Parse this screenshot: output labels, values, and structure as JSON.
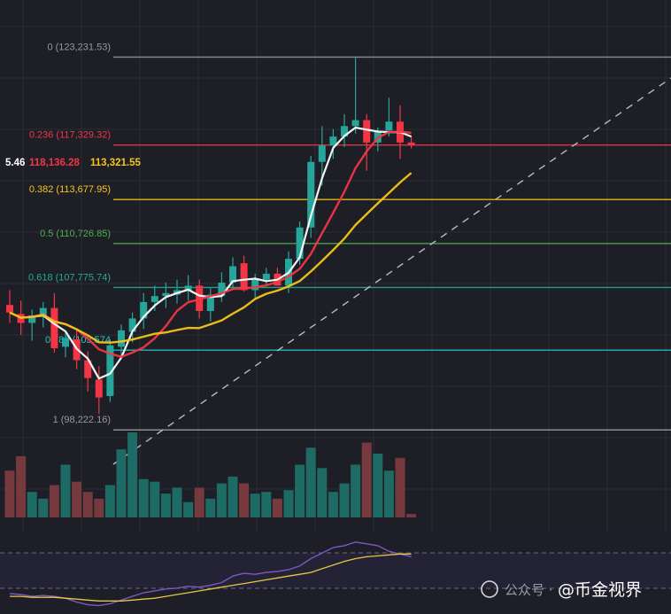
{
  "chart_data": {
    "type": "candlestick",
    "title": "",
    "y_range": [
      95800,
      124800
    ],
    "fib_levels": [
      {
        "ratio_label": "0",
        "value_text": "(123,231.53)",
        "price": 123231.53,
        "color": "#9598a1"
      },
      {
        "ratio_label": "0.236",
        "value_text": "(117,329.32)",
        "price": 117329.32,
        "color": "#f23645"
      },
      {
        "ratio_label": "0.382",
        "value_text": "(113,677.95)",
        "price": 113677.95,
        "color": "#f5c518"
      },
      {
        "ratio_label": "0.5",
        "value_text": "(110,726.85)",
        "price": 110726.85,
        "color": "#4caf50"
      },
      {
        "ratio_label": "0.618",
        "value_text": "(107,775.74)",
        "price": 107775.74,
        "color": "#22ab94"
      },
      {
        "ratio_label": "0.786",
        "value_text": "(103,574",
        "price": 103574,
        "color": "#22c7c7"
      },
      {
        "ratio_label": "1",
        "value_text": "(98,222.16)",
        "price": 98222.16,
        "color": "#9598a1"
      }
    ],
    "ma_values": [
      {
        "text": "5.46",
        "color": "#ffffff"
      },
      {
        "text": "118,136.28",
        "color": "#f23645"
      },
      {
        "text": "113,321.55",
        "color": "#f5c518"
      }
    ],
    "candles": [
      {
        "o": 106600,
        "h": 107600,
        "l": 105400,
        "c": 106100
      },
      {
        "o": 106000,
        "h": 106900,
        "l": 104600,
        "c": 105400
      },
      {
        "o": 105400,
        "h": 106300,
        "l": 104200,
        "c": 105900
      },
      {
        "o": 105800,
        "h": 106800,
        "l": 105100,
        "c": 106400
      },
      {
        "o": 106400,
        "h": 107400,
        "l": 103400,
        "c": 103700
      },
      {
        "o": 103800,
        "h": 104800,
        "l": 103100,
        "c": 104400
      },
      {
        "o": 104300,
        "h": 104900,
        "l": 102300,
        "c": 102900
      },
      {
        "o": 102900,
        "h": 103500,
        "l": 100800,
        "c": 101700
      },
      {
        "o": 101600,
        "h": 102500,
        "l": 99300,
        "c": 100400
      },
      {
        "o": 100500,
        "h": 104300,
        "l": 100100,
        "c": 103900
      },
      {
        "o": 103800,
        "h": 105300,
        "l": 103100,
        "c": 104900
      },
      {
        "o": 104800,
        "h": 106100,
        "l": 104100,
        "c": 105700
      },
      {
        "o": 105700,
        "h": 107400,
        "l": 105000,
        "c": 106800
      },
      {
        "o": 106800,
        "h": 107900,
        "l": 106200,
        "c": 107200
      },
      {
        "o": 107200,
        "h": 108100,
        "l": 106400,
        "c": 107400
      },
      {
        "o": 107300,
        "h": 108300,
        "l": 106700,
        "c": 107600
      },
      {
        "o": 107600,
        "h": 108600,
        "l": 106900,
        "c": 107900
      },
      {
        "o": 107900,
        "h": 108300,
        "l": 105700,
        "c": 106200
      },
      {
        "o": 106200,
        "h": 107800,
        "l": 105500,
        "c": 107300
      },
      {
        "o": 107200,
        "h": 108800,
        "l": 106800,
        "c": 108100
      },
      {
        "o": 108100,
        "h": 109800,
        "l": 107600,
        "c": 109200
      },
      {
        "o": 109400,
        "h": 109900,
        "l": 107500,
        "c": 107600
      },
      {
        "o": 107600,
        "h": 108700,
        "l": 107100,
        "c": 108300
      },
      {
        "o": 108300,
        "h": 109100,
        "l": 107900,
        "c": 108700
      },
      {
        "o": 108700,
        "h": 109100,
        "l": 107900,
        "c": 107900
      },
      {
        "o": 107900,
        "h": 110200,
        "l": 107400,
        "c": 109700
      },
      {
        "o": 109700,
        "h": 112200,
        "l": 109300,
        "c": 111800
      },
      {
        "o": 111800,
        "h": 116600,
        "l": 111100,
        "c": 116200
      },
      {
        "o": 116200,
        "h": 118600,
        "l": 114600,
        "c": 117300
      },
      {
        "o": 117300,
        "h": 118400,
        "l": 116400,
        "c": 117900
      },
      {
        "o": 117900,
        "h": 119400,
        "l": 117200,
        "c": 118600
      },
      {
        "o": 118600,
        "h": 123200,
        "l": 118100,
        "c": 119000
      },
      {
        "o": 119000,
        "h": 119400,
        "l": 115600,
        "c": 117500
      },
      {
        "o": 117500,
        "h": 118500,
        "l": 116900,
        "c": 118200
      },
      {
        "o": 118300,
        "h": 120500,
        "l": 117900,
        "c": 118900
      },
      {
        "o": 118900,
        "h": 120000,
        "l": 116400,
        "c": 117500
      },
      {
        "o": 117500,
        "h": 117900,
        "l": 117100,
        "c": 117300
      }
    ],
    "volumes": [
      0.55,
      0.72,
      0.3,
      0.22,
      0.38,
      0.62,
      0.42,
      0.3,
      0.22,
      0.38,
      0.8,
      1.0,
      0.45,
      0.42,
      0.28,
      0.35,
      0.18,
      0.35,
      0.22,
      0.4,
      0.48,
      0.4,
      0.28,
      0.3,
      0.22,
      0.32,
      0.62,
      0.82,
      0.58,
      0.3,
      0.4,
      0.62,
      0.88,
      0.75,
      0.55,
      0.7,
      0.04
    ],
    "rsi_range": [
      0,
      100
    ],
    "rsi": [
      25,
      24,
      22,
      23,
      22,
      20,
      16,
      13,
      12,
      14,
      18,
      22,
      26,
      28,
      30,
      31,
      33,
      32,
      34,
      37,
      44,
      47,
      46,
      48,
      49,
      51,
      55,
      63,
      69,
      75,
      77,
      81,
      79,
      77,
      71,
      68,
      65
    ],
    "rsi_ma": [
      22,
      22,
      21,
      21,
      21,
      20,
      19,
      18,
      17,
      17,
      17,
      18,
      19,
      20,
      22,
      24,
      26,
      28,
      30,
      32,
      34,
      36,
      38,
      40,
      42,
      44,
      46,
      48,
      52,
      56,
      60,
      63,
      65,
      66,
      67,
      68,
      68
    ]
  },
  "watermark": {
    "account_prefix": "公众号 · ",
    "handle": "@币金视界"
  }
}
